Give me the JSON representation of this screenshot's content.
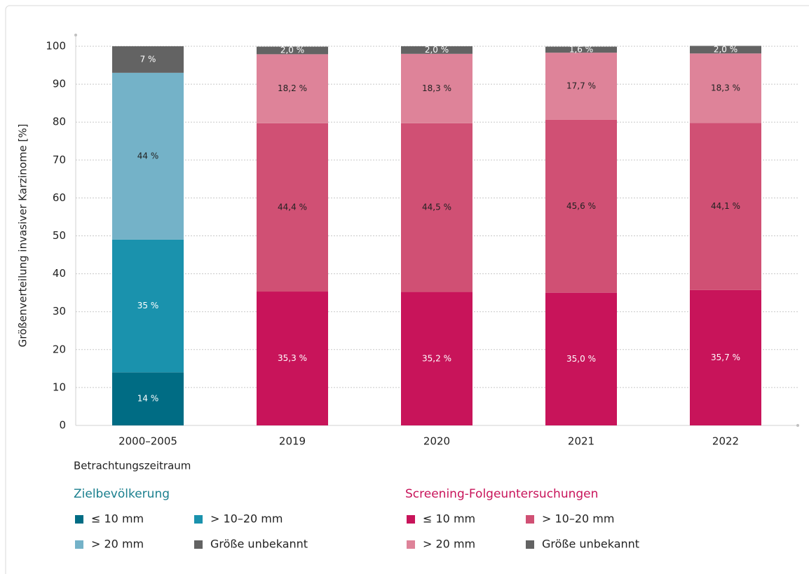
{
  "chart_data": {
    "type": "bar",
    "stacked": true,
    "ylabel": "Größenverteilung invasiver Karzinome [%]",
    "xlabel": "Betrachtungszeitraum",
    "categories": [
      "2000–2005",
      "2019",
      "2020",
      "2021",
      "2022"
    ],
    "ylim": [
      0,
      100
    ],
    "yticks": [
      0,
      10,
      20,
      30,
      40,
      50,
      60,
      70,
      80,
      90,
      100
    ],
    "grid": true,
    "groups": [
      {
        "title": "Zielbevölkerung",
        "title_color": "#1a7f8e",
        "series": [
          {
            "name": "≤ 10 mm",
            "color": "#006c84",
            "label_color": "#ffffff",
            "values": [
              14,
              null,
              null,
              null,
              null
            ],
            "value_labels": [
              "14 %",
              null,
              null,
              null,
              null
            ]
          },
          {
            "name": "> 10–20 mm",
            "color": "#1a92ad",
            "label_color": "#ffffff",
            "values": [
              35,
              null,
              null,
              null,
              null
            ],
            "value_labels": [
              "35 %",
              null,
              null,
              null,
              null
            ]
          },
          {
            "name": "> 20 mm",
            "color": "#74b2c8",
            "label_color": "#222222",
            "values": [
              44,
              null,
              null,
              null,
              null
            ],
            "value_labels": [
              "44 %",
              null,
              null,
              null,
              null
            ]
          },
          {
            "name": "Größe unbekannt",
            "color": "#636363",
            "label_color": "#ffffff",
            "values": [
              7,
              null,
              null,
              null,
              null
            ],
            "value_labels": [
              "7 %",
              null,
              null,
              null,
              null
            ]
          }
        ]
      },
      {
        "title": "Screening-Folgeuntersuchungen",
        "title_color": "#c8145a",
        "series": [
          {
            "name": "≤ 10 mm",
            "color": "#c8145a",
            "label_color": "#ffffff",
            "values": [
              null,
              35.3,
              35.2,
              35.0,
              35.7
            ],
            "value_labels": [
              null,
              "35,3 %",
              "35,2 %",
              "35,0 %",
              "35,7 %"
            ]
          },
          {
            "name": "> 10–20 mm",
            "color": "#d05074",
            "label_color": "#222222",
            "values": [
              null,
              44.4,
              44.5,
              45.6,
              44.1
            ],
            "value_labels": [
              null,
              "44,4 %",
              "44,5 %",
              "45,6 %",
              "44,1 %"
            ]
          },
          {
            "name": "> 20 mm",
            "color": "#de8399",
            "label_color": "#222222",
            "values": [
              null,
              18.2,
              18.3,
              17.7,
              18.3
            ],
            "value_labels": [
              null,
              "18,2 %",
              "18,3 %",
              "17,7 %",
              "18,3 %"
            ]
          },
          {
            "name": "Größe unbekannt",
            "color": "#636363",
            "label_color": "#ffffff",
            "values": [
              null,
              2.0,
              2.0,
              1.6,
              2.0
            ],
            "value_labels": [
              null,
              "2,0 %",
              "2,0 %",
              "1,6 %",
              "2,0 %"
            ]
          }
        ]
      }
    ]
  }
}
